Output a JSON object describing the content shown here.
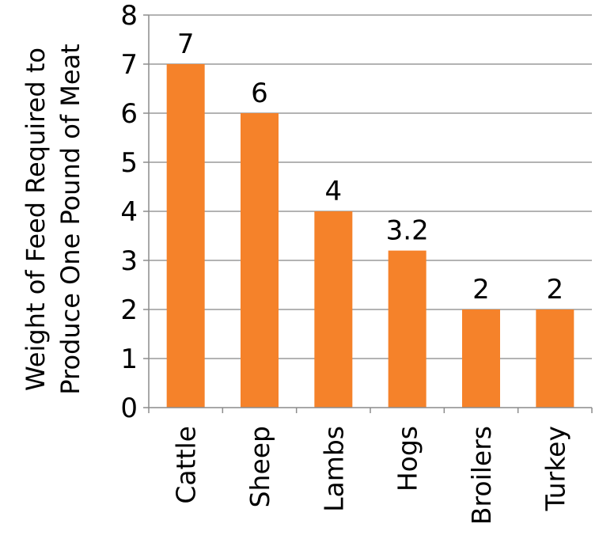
{
  "chart_data": {
    "type": "bar",
    "title": "",
    "xlabel": "",
    "ylabel_lines": [
      "Weight of Feed Required to",
      "Produce One Pound of Meat"
    ],
    "categories": [
      "Cattle",
      "Sheep",
      "Lambs",
      "Hogs",
      "Broilers",
      "Turkey"
    ],
    "values": [
      7,
      6,
      4,
      3.2,
      2,
      2
    ],
    "data_labels": [
      "7",
      "6",
      "4",
      "3.2",
      "2",
      "2"
    ],
    "y_ticks": [
      "0",
      "1",
      "2",
      "3",
      "4",
      "5",
      "6",
      "7",
      "8"
    ],
    "ylim": [
      0,
      8
    ],
    "grid": true,
    "legend": "none",
    "colors": {
      "bar": "#F5822A",
      "grid": "#9a9a9a",
      "axis": "#8c8c8c"
    }
  }
}
